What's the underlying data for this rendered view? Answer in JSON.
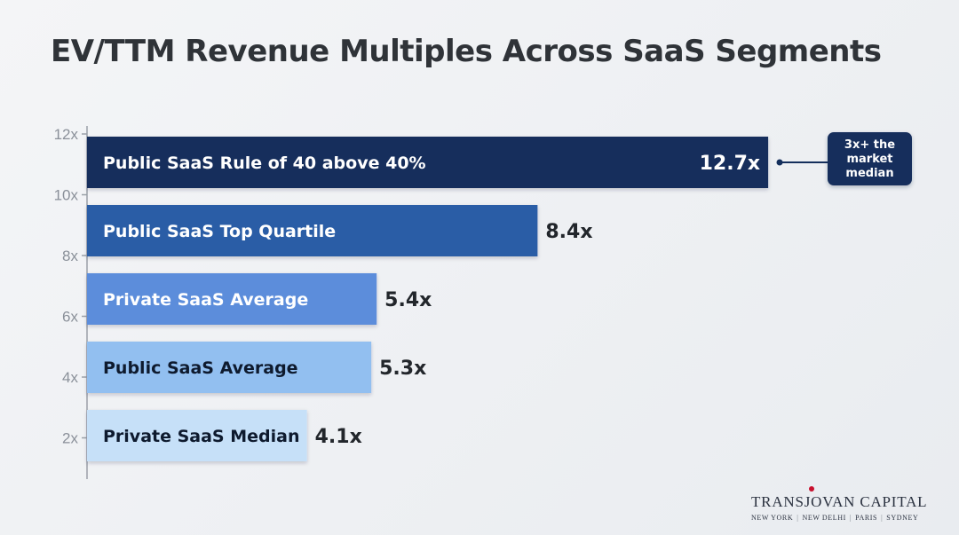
{
  "title": "EV/TTM Revenue Multiples Across SaaS Segments",
  "chart_data": {
    "type": "bar",
    "orientation": "horizontal",
    "categories": [
      "Public SaaS Rule of 40 above 40%",
      "Public SaaS Top Quartile",
      "Private SaaS Average",
      "Public SaaS Average",
      "Private SaaS Median"
    ],
    "values": [
      12.7,
      8.4,
      5.4,
      5.3,
      4.1
    ],
    "value_labels": [
      "12.7x",
      "8.4x",
      "5.4x",
      "5.3x",
      "4.1x"
    ],
    "bar_colors": [
      "#142f5c",
      "#2b5da6",
      "#5b8ddb",
      "#92bff0",
      "#c6e0f8"
    ],
    "label_colors": [
      "#ffffff",
      "#ffffff",
      "#ffffff",
      "#0e1a2e",
      "#0e1a2e"
    ],
    "xlim": [
      0,
      13
    ],
    "axis_ticks": [
      "12x",
      "10x",
      "8x",
      "6x",
      "4x",
      "2x"
    ],
    "annotation": {
      "text_lines": [
        "3x+ the",
        "market",
        "median"
      ],
      "target_index": 0,
      "color": "#142f5c"
    },
    "grid": false,
    "legend": "none"
  },
  "brand": {
    "name": "TRANSJOVAN CAPITAL",
    "locations": [
      "NEW YORK",
      "NEW DELHI",
      "PARIS",
      "SYDNEY"
    ],
    "dot_color": "#c8102e"
  }
}
